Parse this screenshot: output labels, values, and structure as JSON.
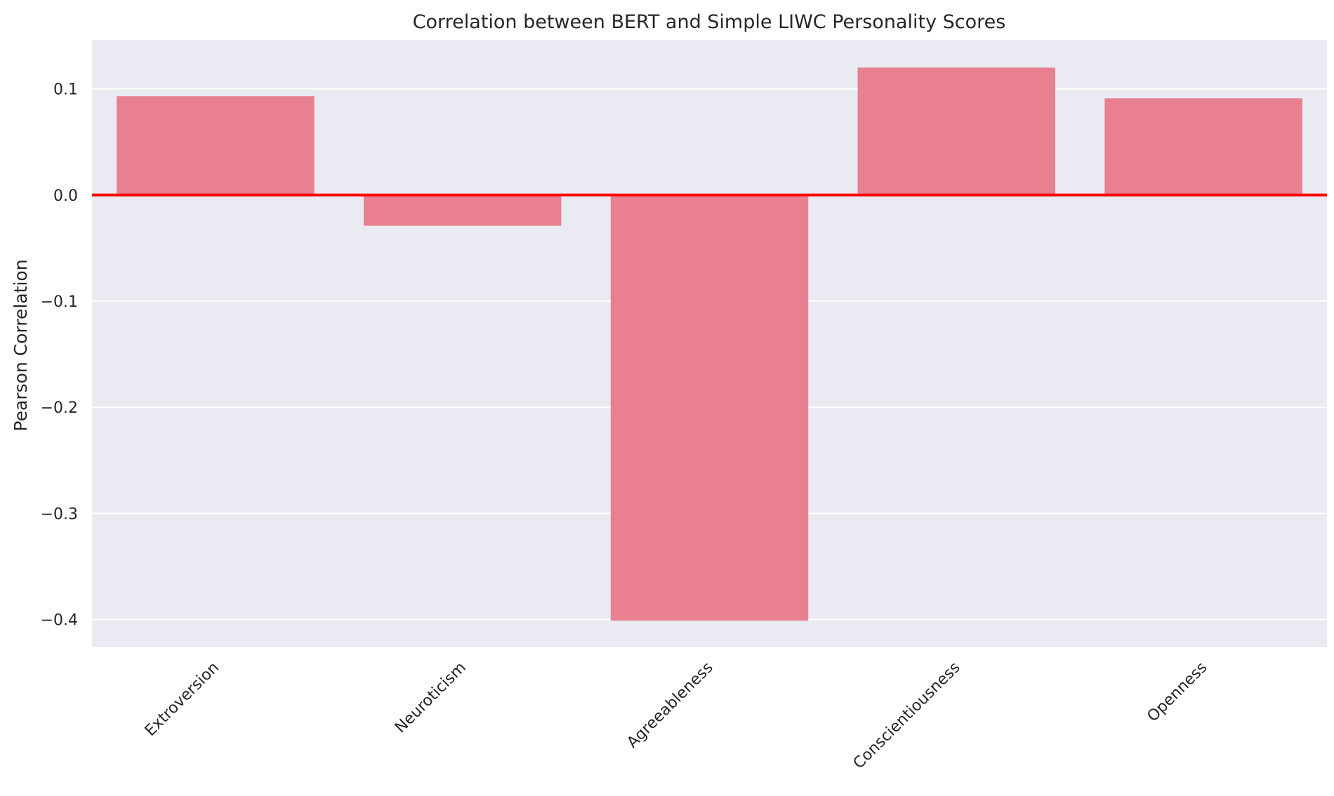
{
  "chart_data": {
    "type": "bar",
    "title": "Correlation between BERT and Simple LIWC Personality Scores",
    "xlabel": "",
    "ylabel": "Pearson Correlation",
    "categories": [
      "Extroversion",
      "Neuroticism",
      "Agreeableness",
      "Conscientiousness",
      "Openness"
    ],
    "values": [
      0.093,
      -0.029,
      -0.401,
      0.12,
      0.091
    ],
    "ylim": [
      -0.426,
      0.146
    ],
    "yticks": [
      0.1,
      0.0,
      -0.1,
      -0.2,
      -0.3,
      -0.4
    ],
    "ytick_labels": [
      "0.1",
      "0.0",
      "−0.1",
      "−0.2",
      "−0.3",
      "−0.4"
    ],
    "grid": true,
    "reference_line": {
      "y": 0.0,
      "color": "#ff0000"
    },
    "colors": {
      "bar": "#e88090",
      "background": "#eaeaf2",
      "grid": "#ffffff",
      "reference_line": "#ff0000"
    }
  }
}
